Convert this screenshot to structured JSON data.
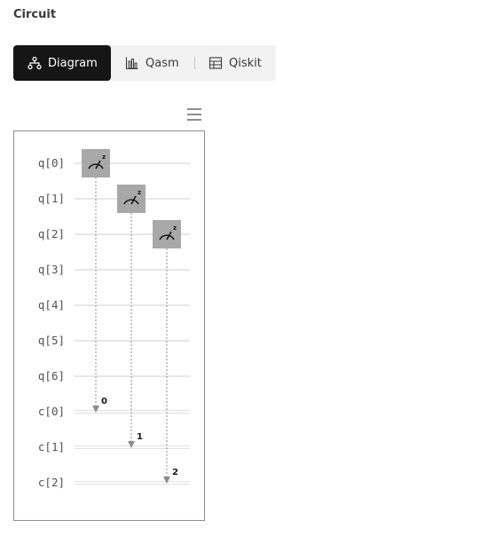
{
  "page": {
    "title": "Circuit"
  },
  "tabs": [
    {
      "label": "Diagram",
      "icon": "diagram-icon",
      "active": true
    },
    {
      "label": "Qasm",
      "icon": "chart-bar-icon",
      "active": false
    },
    {
      "label": "Qiskit",
      "icon": "table-icon",
      "active": false
    }
  ],
  "menu": {
    "icon": "hamburger-menu-icon"
  },
  "circuit": {
    "qubits": [
      "q[0]",
      "q[1]",
      "q[2]",
      "q[3]",
      "q[4]",
      "q[5]",
      "q[6]"
    ],
    "clbits": [
      "c[0]",
      "c[1]",
      "c[2]"
    ],
    "measurements": [
      {
        "qubit": 0,
        "clbit": 0,
        "label": "0",
        "basis": "z"
      },
      {
        "qubit": 1,
        "clbit": 1,
        "label": "1",
        "basis": "z"
      },
      {
        "qubit": 2,
        "clbit": 2,
        "label": "2",
        "basis": "z"
      }
    ],
    "colors": {
      "gate": "#a8a8a8",
      "wire": "#e0e0e0",
      "arrow": "#8d8d8d"
    }
  }
}
